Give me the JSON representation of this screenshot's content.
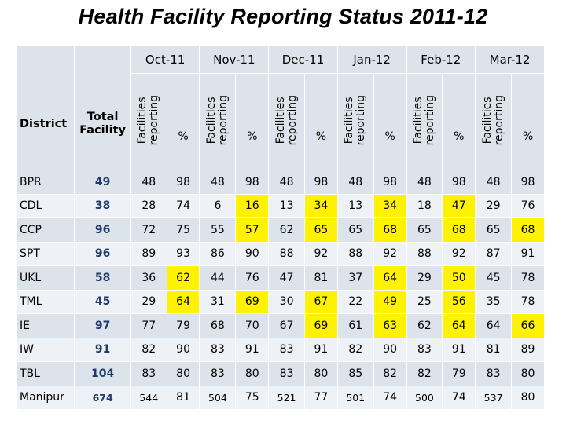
{
  "title": "Health Facility Reporting Status  2011-12",
  "headers": {
    "district": "District",
    "total_line1": "Total",
    "total_line2": "Facility",
    "facilities_line1": "Facilities",
    "facilities_line2": "reporting",
    "percent": "%",
    "months": [
      "Oct-11",
      "Nov-11",
      "Dec-11",
      "Jan-12",
      "Feb-12",
      "Mar-12"
    ]
  },
  "highlight_color": "#fff200",
  "rows": [
    {
      "district": "BPR",
      "total": "49",
      "values": [
        "48",
        "98",
        "48",
        "98",
        "48",
        "98",
        "48",
        "98",
        "48",
        "98",
        "48",
        "98"
      ],
      "highlight": []
    },
    {
      "district": "CDL",
      "total": "38",
      "values": [
        "28",
        "74",
        "6",
        "16",
        "13",
        "34",
        "13",
        "34",
        "18",
        "47",
        "29",
        "76"
      ],
      "highlight": [
        3,
        5,
        7,
        9
      ]
    },
    {
      "district": "CCP",
      "total": "96",
      "values": [
        "72",
        "75",
        "55",
        "57",
        "62",
        "65",
        "65",
        "68",
        "65",
        "68",
        "65",
        "68"
      ],
      "highlight": [
        3,
        5,
        7,
        9,
        11
      ]
    },
    {
      "district": "SPT",
      "total": "96",
      "values": [
        "89",
        "93",
        "86",
        "90",
        "88",
        "92",
        "88",
        "92",
        "88",
        "92",
        "87",
        "91"
      ],
      "highlight": []
    },
    {
      "district": "UKL",
      "total": "58",
      "values": [
        "36",
        "62",
        "44",
        "76",
        "47",
        "81",
        "37",
        "64",
        "29",
        "50",
        "45",
        "78"
      ],
      "highlight": [
        1,
        7,
        9
      ]
    },
    {
      "district": "TML",
      "total": "45",
      "values": [
        "29",
        "64",
        "31",
        "69",
        "30",
        "67",
        "22",
        "49",
        "25",
        "56",
        "35",
        "78"
      ],
      "highlight": [
        1,
        3,
        5,
        7,
        9
      ]
    },
    {
      "district": "IE",
      "total": "97",
      "values": [
        "77",
        "79",
        "68",
        "70",
        "67",
        "69",
        "61",
        "63",
        "62",
        "64",
        "64",
        "66"
      ],
      "highlight": [
        5,
        7,
        9,
        11
      ]
    },
    {
      "district": "IW",
      "total": "91",
      "values": [
        "82",
        "90",
        "83",
        "91",
        "83",
        "91",
        "82",
        "90",
        "83",
        "91",
        "81",
        "89"
      ],
      "highlight": []
    },
    {
      "district": "TBL",
      "total": "104",
      "values": [
        "83",
        "80",
        "83",
        "80",
        "83",
        "80",
        "85",
        "82",
        "82",
        "79",
        "83",
        "80"
      ],
      "highlight": []
    },
    {
      "district": "Manipur",
      "total": "674",
      "values": [
        "544",
        "81",
        "504",
        "75",
        "521",
        "77",
        "501",
        "74",
        "500",
        "74",
        "537",
        "80"
      ],
      "highlight": []
    }
  ]
}
